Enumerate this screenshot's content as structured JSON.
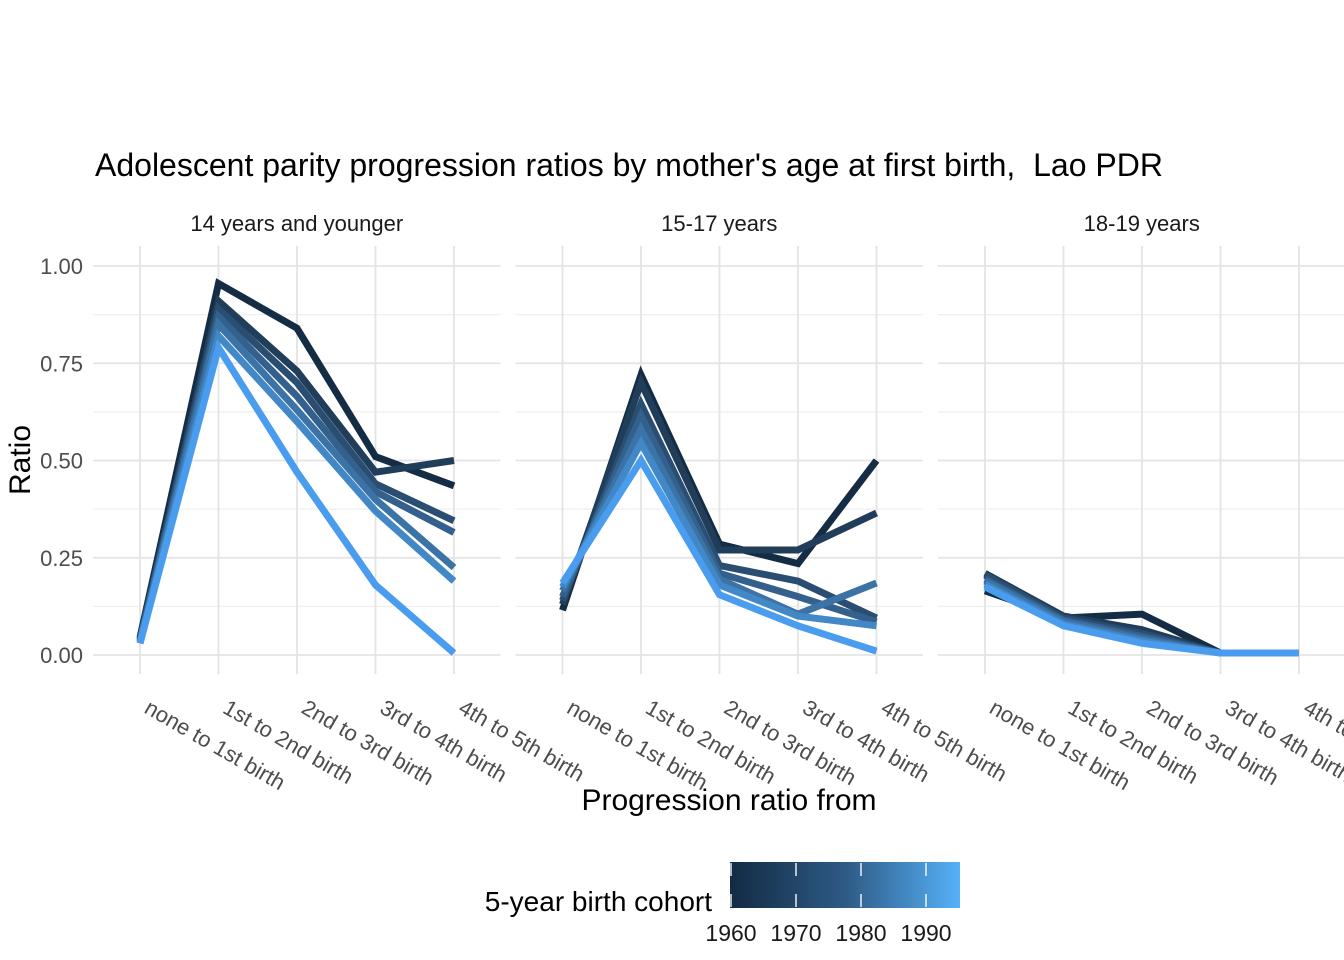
{
  "chart": {
    "title": "Adolescent parity progression ratios by mother's age at first birth,  Lao PDR",
    "x_axis_title": "Progression ratio from",
    "y_axis_title": "Ratio",
    "legend_title": "5-year birth cohort"
  },
  "colors": {
    "background": "#FFFFFF",
    "grid_major": "#E4E4E4",
    "grid_minor": "#EFEFEF",
    "tick_label": "#4D4D4D",
    "gradient_dark": "#132B43",
    "gradient_mid": "#2E5A86",
    "gradient_light": "#56B1F7"
  },
  "chart_data": {
    "type": "line",
    "title": "Adolescent parity progression ratios by mother's age at first birth,  Lao PDR",
    "xlabel": "Progression ratio from",
    "ylabel": "Ratio",
    "ylim": [
      0,
      1
    ],
    "grid": true,
    "y_ticks": [
      0,
      0.25,
      0.5,
      0.75,
      1.0
    ],
    "y_tick_labels": [
      "0.00",
      "0.25",
      "0.50",
      "0.75",
      "1.00"
    ],
    "y_minor_ticks": [
      0.125,
      0.375,
      0.625,
      0.875
    ],
    "categories": [
      "none to 1st birth",
      "1st to 2nd birth",
      "2nd to 3rd birth",
      "3rd to 4th birth",
      "4th to 5th birth"
    ],
    "cohorts": [
      {
        "year": 1960,
        "color": "#142C44"
      },
      {
        "year": 1965,
        "color": "#203D5A"
      },
      {
        "year": 1970,
        "color": "#2A4E72"
      },
      {
        "year": 1975,
        "color": "#33608C"
      },
      {
        "year": 1980,
        "color": "#3B73A6"
      },
      {
        "year": 1985,
        "color": "#4287C6"
      },
      {
        "year": 1990,
        "color": "#4A9DEE"
      }
    ],
    "facets": [
      {
        "label": "14 years and younger",
        "series": [
          {
            "cohort": 1960,
            "values": [
              0.045,
              0.955,
              0.84,
              0.51,
              0.435
            ]
          },
          {
            "cohort": 1965,
            "values": [
              0.04,
              0.91,
              0.73,
              0.47,
              0.5
            ]
          },
          {
            "cohort": 1970,
            "values": [
              0.04,
              0.89,
              0.7,
              0.44,
              0.345
            ]
          },
          {
            "cohort": 1975,
            "values": [
              0.035,
              0.87,
              0.665,
              0.42,
              0.315
            ]
          },
          {
            "cohort": 1980,
            "values": [
              0.035,
              0.85,
              0.63,
              0.4,
              0.225
            ]
          },
          {
            "cohort": 1985,
            "values": [
              0.03,
              0.82,
              0.6,
              0.37,
              0.19
            ]
          },
          {
            "cohort": 1990,
            "values": [
              0.03,
              0.79,
              0.47,
              0.18,
              0.005
            ]
          }
        ]
      },
      {
        "label": "15-17 years",
        "series": [
          {
            "cohort": 1960,
            "values": [
              0.115,
              0.72,
              0.285,
              0.235,
              0.5
            ]
          },
          {
            "cohort": 1965,
            "values": [
              0.13,
              0.7,
              0.27,
              0.27,
              0.365
            ]
          },
          {
            "cohort": 1970,
            "values": [
              0.14,
              0.645,
              0.23,
              0.19,
              0.095
            ]
          },
          {
            "cohort": 1975,
            "values": [
              0.15,
              0.615,
              0.21,
              0.15,
              0.085
            ]
          },
          {
            "cohort": 1980,
            "values": [
              0.165,
              0.58,
              0.195,
              0.105,
              0.185
            ]
          },
          {
            "cohort": 1985,
            "values": [
              0.175,
              0.545,
              0.18,
              0.1,
              0.075
            ]
          },
          {
            "cohort": 1990,
            "values": [
              0.185,
              0.5,
              0.155,
              0.075,
              0.01
            ]
          }
        ]
      },
      {
        "label": "18-19 years",
        "series": [
          {
            "cohort": 1960,
            "values": [
              0.165,
              0.095,
              0.105,
              0.005,
              0.005
            ]
          },
          {
            "cohort": 1965,
            "values": [
              0.21,
              0.1,
              0.065,
              0.005,
              0.005
            ]
          },
          {
            "cohort": 1970,
            "values": [
              0.205,
              0.095,
              0.055,
              0.005,
              0.005
            ]
          },
          {
            "cohort": 1975,
            "values": [
              0.195,
              0.09,
              0.048,
              0.005,
              0.005
            ]
          },
          {
            "cohort": 1980,
            "values": [
              0.19,
              0.086,
              0.042,
              0.005,
              0.005
            ]
          },
          {
            "cohort": 1985,
            "values": [
              0.182,
              0.08,
              0.036,
              0.005,
              0.005
            ]
          },
          {
            "cohort": 1990,
            "values": [
              0.175,
              0.075,
              0.03,
              0.005,
              0.005
            ]
          }
        ]
      }
    ],
    "legend": {
      "position": "bottom",
      "type": "colorbar",
      "title": "5-year birth cohort",
      "ticks": [
        1960,
        1970,
        1980,
        1990
      ]
    }
  }
}
